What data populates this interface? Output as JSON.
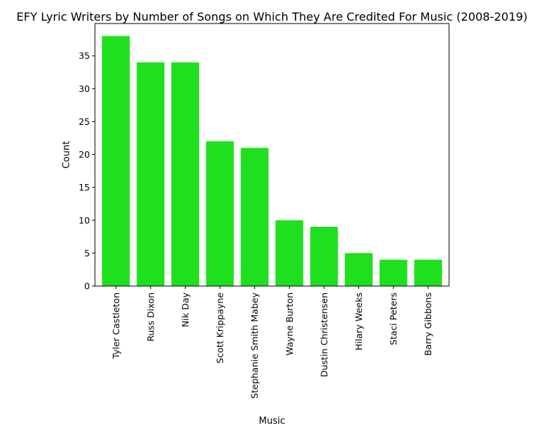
{
  "chart_data": {
    "type": "bar",
    "title": "EFY Lyric Writers by Number of Songs on Which They Are Credited For Music (2008-2019)",
    "xlabel": "Music",
    "ylabel": "Count",
    "categories": [
      "Tyler Castleton",
      "Russ Dixon",
      "Nik Day",
      "Scott Krippayne",
      "Stephanie Smith Mabey",
      "Wayne Burton",
      "Dustin Christensen",
      "Hilary Weeks",
      "Staci Peters",
      "Barry Gibbons"
    ],
    "values": [
      38,
      34,
      34,
      22,
      21,
      10,
      9,
      5,
      4,
      4
    ],
    "ylim": [
      0,
      39.9
    ],
    "yticks": [
      0,
      5,
      10,
      15,
      20,
      25,
      30,
      35
    ],
    "bar_color": "#1fe01f",
    "grid": false,
    "legend": "none"
  }
}
